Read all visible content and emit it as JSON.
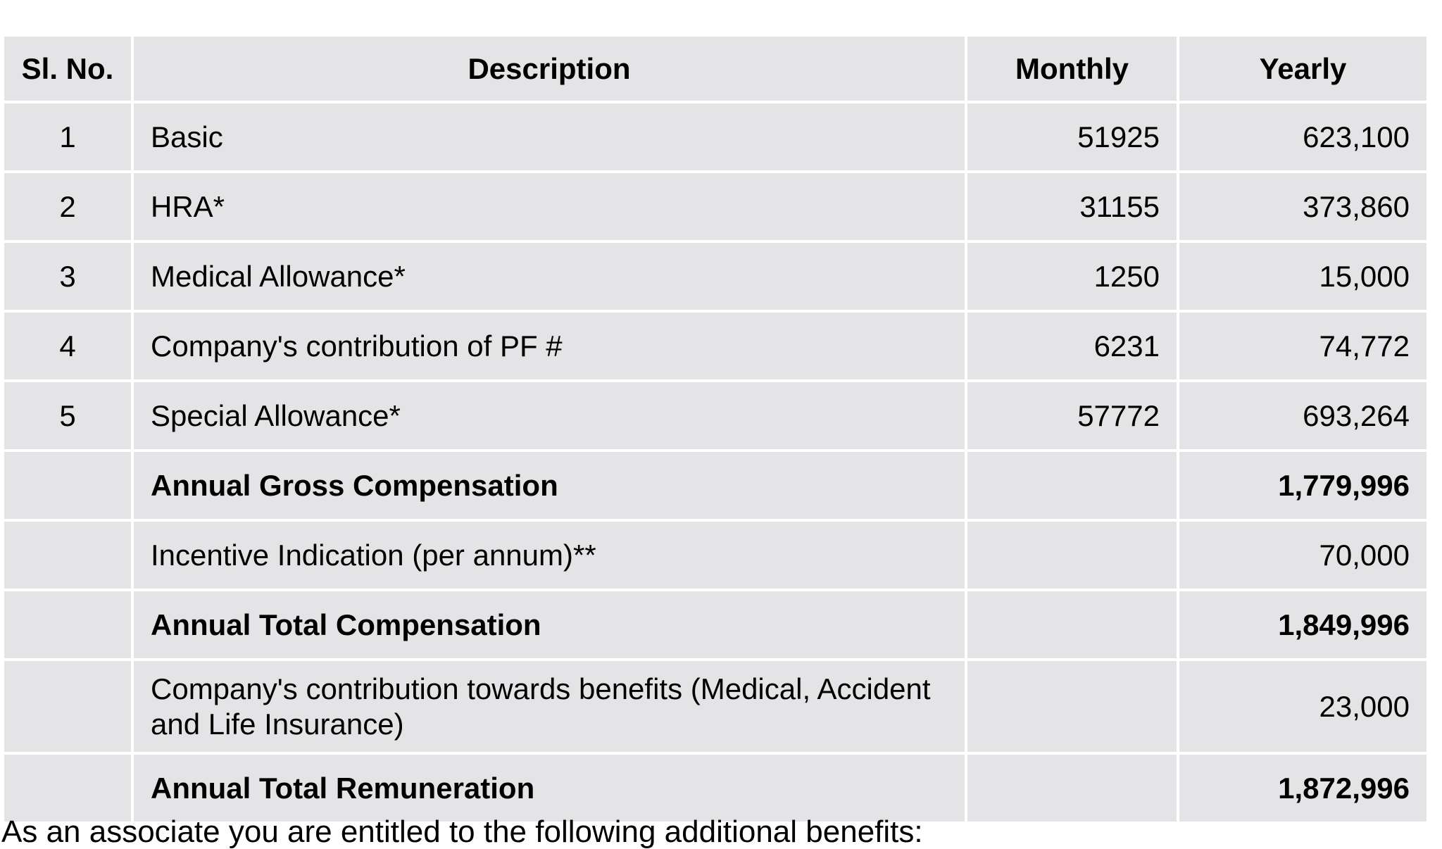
{
  "table": {
    "headers": {
      "sl_no": "Sl. No.",
      "description": "Description",
      "monthly": "Monthly",
      "yearly": "Yearly"
    },
    "rows": [
      {
        "sl_no": "1",
        "description": "Basic",
        "monthly": "51925",
        "yearly": "623,100"
      },
      {
        "sl_no": "2",
        "description": "HRA*",
        "monthly": "31155",
        "yearly": "373,860"
      },
      {
        "sl_no": "3",
        "description": "Medical Allowance*",
        "monthly": "1250",
        "yearly": "15,000"
      },
      {
        "sl_no": "4",
        "description": "Company's contribution of PF #",
        "monthly": "6231",
        "yearly": "74,772"
      },
      {
        "sl_no": "5",
        "description": "Special Allowance*",
        "monthly": "57772",
        "yearly": "693,264"
      },
      {
        "sl_no": "",
        "description": "Annual Gross Compensation",
        "monthly": "",
        "yearly": "1,779,996",
        "bold": true
      },
      {
        "sl_no": "",
        "description": "Incentive Indication (per annum)**",
        "monthly": "",
        "yearly": "70,000"
      },
      {
        "sl_no": "",
        "description": "Annual Total Compensation",
        "monthly": "",
        "yearly": "1,849,996",
        "bold": true
      },
      {
        "sl_no": "",
        "description": "Company's contribution towards benefits (Medical, Accident and Life Insurance)",
        "monthly": "",
        "yearly": "23,000"
      },
      {
        "sl_no": "",
        "description": "Annual Total Remuneration",
        "monthly": "",
        "yearly": "1,872,996",
        "bold": true
      }
    ]
  },
  "footnote": "As an associate you are entitled to the following additional benefits:"
}
